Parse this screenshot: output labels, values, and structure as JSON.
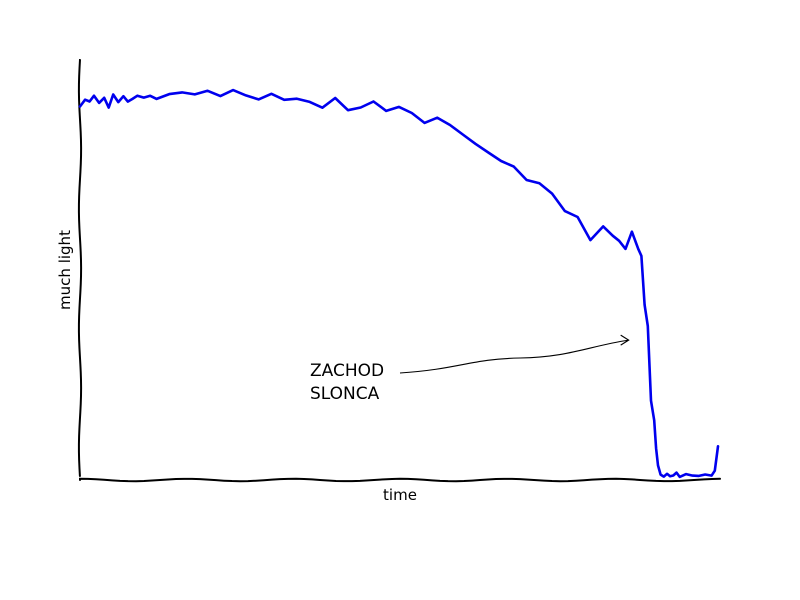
{
  "chart_data": {
    "type": "line",
    "title": "",
    "xlabel": "time",
    "ylabel": "much light",
    "xlim": [
      0,
      100
    ],
    "ylim": [
      0,
      100
    ],
    "grid": false,
    "series": [
      {
        "color": "#0000ee",
        "x": [
          0,
          0.8,
          1.5,
          2.2,
          3,
          3.8,
          4.5,
          5.2,
          6,
          6.8,
          7.5,
          8.2,
          9,
          10,
          11,
          12,
          14,
          16,
          18,
          20,
          22,
          24,
          26,
          28,
          30,
          32,
          34,
          36,
          38,
          40,
          42,
          44,
          46,
          48,
          50,
          52,
          54,
          56,
          58,
          60,
          62,
          64,
          66,
          68,
          70,
          72,
          74,
          76,
          78,
          80,
          82,
          83.5,
          84.5,
          85.5,
          86.5,
          87.5,
          88,
          88.5,
          89,
          89.5,
          90,
          90.3,
          90.6,
          91,
          91.5,
          92,
          92.5,
          93,
          93.5,
          94,
          95,
          96,
          97,
          98,
          99,
          99.5,
          100
        ],
        "y": [
          97,
          99,
          98,
          100,
          98,
          99,
          97,
          100,
          98,
          100,
          98,
          99,
          100,
          99,
          100,
          99,
          100,
          101,
          100,
          101,
          100,
          101,
          100,
          99,
          100,
          99,
          99,
          98,
          97,
          99,
          96,
          97,
          98,
          96,
          97,
          95,
          93,
          94,
          92,
          90,
          87,
          85,
          83,
          81,
          78,
          77,
          74,
          70,
          68,
          62,
          66,
          63,
          62,
          60,
          64,
          60,
          58,
          45,
          40,
          20,
          15,
          8,
          3,
          1,
          0.5,
          0.8,
          0.7,
          0.6,
          1.2,
          0.6,
          0.8,
          0.6,
          0.8,
          0.6,
          0.8,
          2,
          8
        ]
      }
    ],
    "annotation": {
      "lines": [
        "ZACHOD",
        "SLONCA"
      ],
      "arrow_target": [
        86,
        36
      ]
    }
  }
}
